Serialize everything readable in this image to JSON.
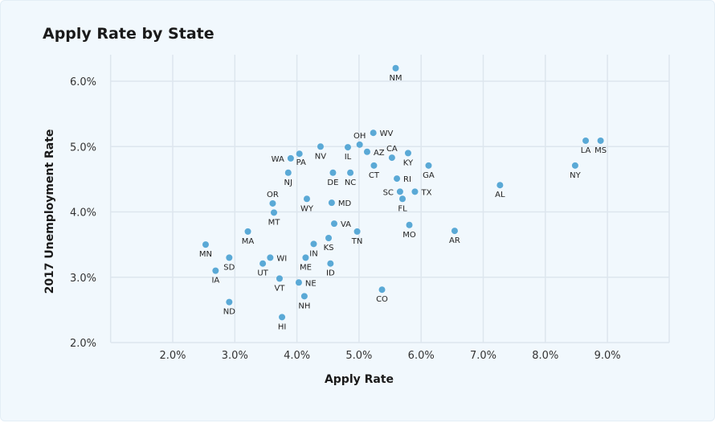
{
  "chart_data": {
    "type": "scatter",
    "title": "Apply Rate by State",
    "xlabel": "Apply Rate",
    "ylabel": "2017 Unemployment Rate",
    "xlim": [
      1.0,
      10.0
    ],
    "ylim": [
      2.0,
      6.0
    ],
    "xticks": [
      {
        "v": 2,
        "label": "2.0%"
      },
      {
        "v": 3,
        "label": "3.0%"
      },
      {
        "v": 4,
        "label": "4.0%"
      },
      {
        "v": 5,
        "label": "5.0%"
      },
      {
        "v": 6,
        "label": "6.0%"
      },
      {
        "v": 7,
        "label": "7.0%"
      },
      {
        "v": 8,
        "label": "8.0%"
      },
      {
        "v": 9,
        "label": "9.0%"
      }
    ],
    "yticks": [
      {
        "v": 2,
        "label": "2.0%"
      },
      {
        "v": 3,
        "label": "3.0%"
      },
      {
        "v": 4,
        "label": "4.0%"
      },
      {
        "v": 5,
        "label": "5.0%"
      },
      {
        "v": 6,
        "label": "6.0%"
      }
    ],
    "grid": true,
    "point_color": "#5aa9d6",
    "points": [
      {
        "label": "NM",
        "x": 5.59,
        "y": 6.2,
        "pos": "below"
      },
      {
        "label": "WV",
        "x": 5.23,
        "y": 5.21,
        "pos": "right"
      },
      {
        "label": "OH",
        "x": 5.01,
        "y": 5.03,
        "pos": "above"
      },
      {
        "label": "NV",
        "x": 4.38,
        "y": 5.0,
        "pos": "below"
      },
      {
        "label": "IL",
        "x": 4.82,
        "y": 4.99,
        "pos": "below"
      },
      {
        "label": "AZ",
        "x": 5.13,
        "y": 4.92,
        "pos": "right"
      },
      {
        "label": "CA",
        "x": 5.53,
        "y": 4.83,
        "pos": "above"
      },
      {
        "label": "KY",
        "x": 5.79,
        "y": 4.9,
        "pos": "below"
      },
      {
        "label": "WA",
        "x": 3.9,
        "y": 4.82,
        "pos": "left"
      },
      {
        "label": "PA",
        "x": 4.04,
        "y": 4.89,
        "pos": "below"
      },
      {
        "label": "GA",
        "x": 6.12,
        "y": 4.71,
        "pos": "below"
      },
      {
        "label": "CT",
        "x": 5.24,
        "y": 4.71,
        "pos": "below"
      },
      {
        "label": "NJ",
        "x": 3.86,
        "y": 4.6,
        "pos": "below"
      },
      {
        "label": "DE",
        "x": 4.58,
        "y": 4.6,
        "pos": "below"
      },
      {
        "label": "NC",
        "x": 4.86,
        "y": 4.6,
        "pos": "below"
      },
      {
        "label": "RI",
        "x": 5.61,
        "y": 4.51,
        "pos": "right"
      },
      {
        "label": "SC",
        "x": 5.66,
        "y": 4.31,
        "pos": "left"
      },
      {
        "label": "TX",
        "x": 5.9,
        "y": 4.31,
        "pos": "right"
      },
      {
        "label": "FL",
        "x": 5.7,
        "y": 4.2,
        "pos": "below"
      },
      {
        "label": "OR",
        "x": 3.61,
        "y": 4.13,
        "pos": "above"
      },
      {
        "label": "WY",
        "x": 4.16,
        "y": 4.2,
        "pos": "below"
      },
      {
        "label": "MD",
        "x": 4.56,
        "y": 4.14,
        "pos": "right"
      },
      {
        "label": "MT",
        "x": 3.63,
        "y": 3.99,
        "pos": "below"
      },
      {
        "label": "VA",
        "x": 4.6,
        "y": 3.82,
        "pos": "right"
      },
      {
        "label": "TN",
        "x": 4.97,
        "y": 3.7,
        "pos": "below"
      },
      {
        "label": "MO",
        "x": 5.81,
        "y": 3.8,
        "pos": "below"
      },
      {
        "label": "MA",
        "x": 3.21,
        "y": 3.7,
        "pos": "below"
      },
      {
        "label": "KS",
        "x": 4.51,
        "y": 3.6,
        "pos": "below"
      },
      {
        "label": "IN",
        "x": 4.27,
        "y": 3.51,
        "pos": "below"
      },
      {
        "label": "MN",
        "x": 2.53,
        "y": 3.5,
        "pos": "below"
      },
      {
        "label": "SD",
        "x": 2.91,
        "y": 3.3,
        "pos": "below"
      },
      {
        "label": "WI",
        "x": 3.57,
        "y": 3.3,
        "pos": "right"
      },
      {
        "label": "ME",
        "x": 4.14,
        "y": 3.3,
        "pos": "below"
      },
      {
        "label": "ID",
        "x": 4.54,
        "y": 3.21,
        "pos": "below"
      },
      {
        "label": "UT",
        "x": 3.45,
        "y": 3.21,
        "pos": "below"
      },
      {
        "label": "IA",
        "x": 2.69,
        "y": 3.1,
        "pos": "below"
      },
      {
        "label": "VT",
        "x": 3.72,
        "y": 2.98,
        "pos": "below"
      },
      {
        "label": "NE",
        "x": 4.03,
        "y": 2.92,
        "pos": "right"
      },
      {
        "label": "CO",
        "x": 5.37,
        "y": 2.81,
        "pos": "below"
      },
      {
        "label": "NH",
        "x": 4.12,
        "y": 2.71,
        "pos": "below"
      },
      {
        "label": "ND",
        "x": 2.91,
        "y": 2.62,
        "pos": "below"
      },
      {
        "label": "HI",
        "x": 3.76,
        "y": 2.39,
        "pos": "below"
      },
      {
        "label": "AR",
        "x": 6.54,
        "y": 3.71,
        "pos": "below"
      },
      {
        "label": "AL",
        "x": 7.27,
        "y": 4.41,
        "pos": "below"
      },
      {
        "label": "NY",
        "x": 8.48,
        "y": 4.71,
        "pos": "below"
      },
      {
        "label": "LA",
        "x": 8.65,
        "y": 5.09,
        "pos": "below"
      },
      {
        "label": "MS",
        "x": 8.89,
        "y": 5.09,
        "pos": "below"
      }
    ]
  }
}
